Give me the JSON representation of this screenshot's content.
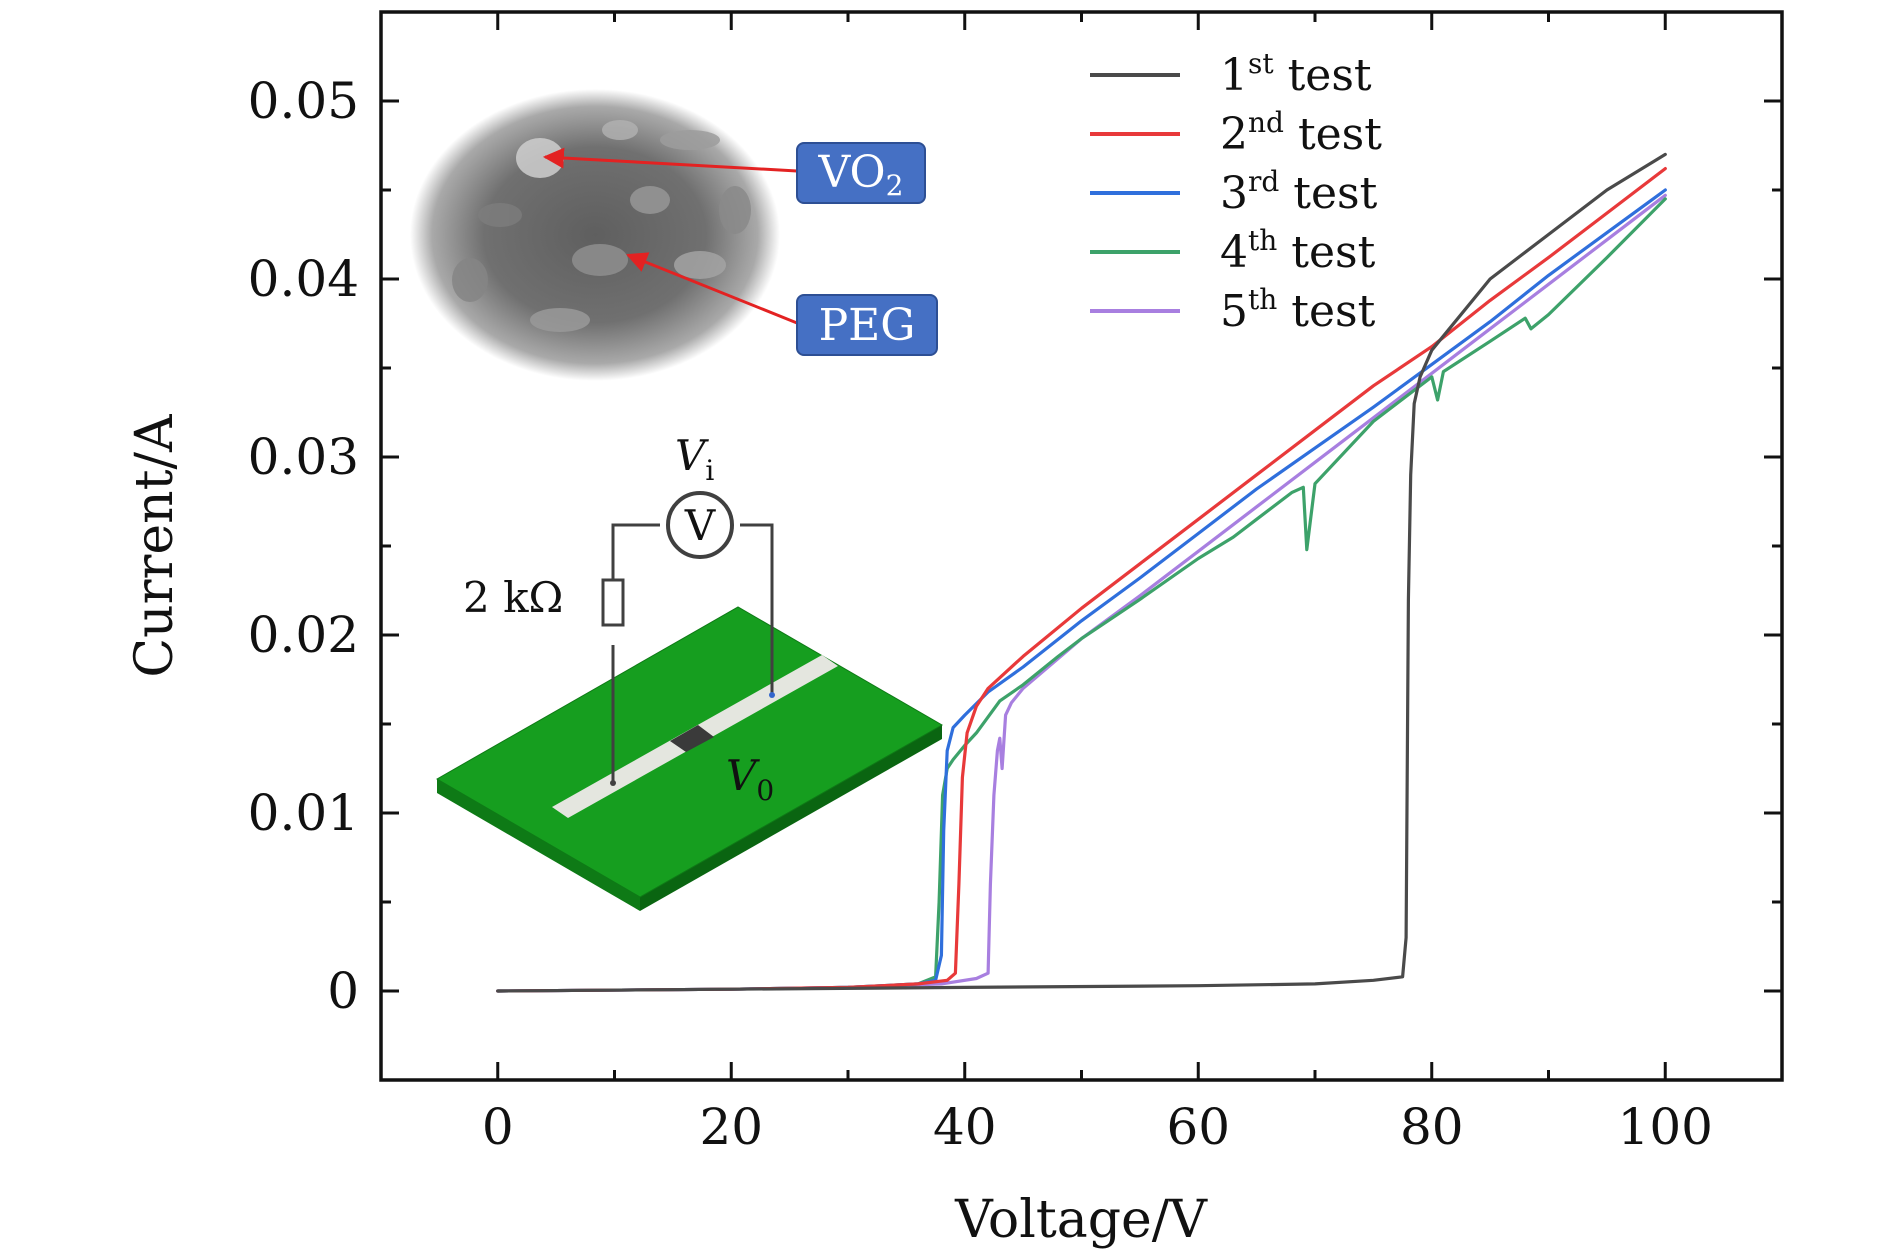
{
  "chart_data": {
    "type": "line",
    "title": "",
    "xlabel": "Voltage/V",
    "ylabel": "Current/A",
    "xlim": [
      -10,
      110
    ],
    "ylim": [
      -0.005,
      0.055
    ],
    "xticks": [
      0,
      20,
      40,
      60,
      80,
      100
    ],
    "xtick_labels": [
      "0",
      "20",
      "40",
      "60",
      "80",
      "100"
    ],
    "yticks": [
      0,
      0.01,
      0.02,
      0.03,
      0.04,
      0.05
    ],
    "ytick_labels": [
      "0",
      "0.01",
      "0.02",
      "0.03",
      "0.04",
      "0.05"
    ],
    "grid": false,
    "legend_position": "top-right",
    "series": [
      {
        "name": "1st test",
        "label_base": "1",
        "label_sup": "st",
        "label_rest": " test",
        "color": "#4a4a4a",
        "x": [
          0,
          20,
          40,
          60,
          70,
          75,
          77.5,
          77.8,
          77.9,
          78.0,
          78.2,
          78.5,
          79,
          80,
          85,
          90,
          95,
          100
        ],
        "y": [
          0,
          0.0001,
          0.0002,
          0.0003,
          0.0004,
          0.0006,
          0.0008,
          0.003,
          0.012,
          0.022,
          0.029,
          0.033,
          0.0345,
          0.036,
          0.04,
          0.0425,
          0.045,
          0.047
        ]
      },
      {
        "name": "2nd test",
        "label_base": "2",
        "label_sup": "nd",
        "label_rest": " test",
        "color": "#e8393a",
        "x": [
          0,
          20,
          30,
          36,
          38.5,
          39.2,
          39.5,
          39.8,
          40.2,
          41,
          42,
          45,
          50,
          55,
          60,
          65,
          70,
          75,
          80,
          85,
          90,
          95,
          100
        ],
        "y": [
          0,
          0.0001,
          0.0002,
          0.0004,
          0.0006,
          0.001,
          0.006,
          0.012,
          0.0145,
          0.016,
          0.017,
          0.0188,
          0.0215,
          0.024,
          0.0265,
          0.029,
          0.0315,
          0.034,
          0.0362,
          0.0388,
          0.0412,
          0.0437,
          0.0462
        ]
      },
      {
        "name": "3rd test",
        "label_base": "3",
        "label_sup": "rd",
        "label_rest": " test",
        "color": "#2f6fdc",
        "x": [
          0,
          20,
          30,
          36,
          37.5,
          38.0,
          38.2,
          38.5,
          39,
          40,
          42,
          45,
          50,
          55,
          60,
          65,
          70,
          75,
          80,
          85,
          90,
          95,
          100
        ],
        "y": [
          0,
          0.0001,
          0.0002,
          0.0004,
          0.0006,
          0.002,
          0.009,
          0.0135,
          0.0148,
          0.0155,
          0.0168,
          0.0182,
          0.0208,
          0.0232,
          0.0257,
          0.0282,
          0.0305,
          0.0328,
          0.0352,
          0.0376,
          0.0402,
          0.0426,
          0.045
        ]
      },
      {
        "name": "4th test",
        "label_base": "4",
        "label_sup": "th",
        "label_rest": " test",
        "color": "#3da26a",
        "x": [
          0,
          20,
          30,
          36,
          37.5,
          37.8,
          38.1,
          38.5,
          39,
          40,
          41,
          43,
          45,
          48,
          50,
          55,
          60,
          63,
          65,
          68,
          69,
          69.3,
          70,
          75,
          80,
          80.5,
          81,
          85,
          88,
          88.5,
          90,
          95,
          100
        ],
        "y": [
          0,
          0.0001,
          0.0002,
          0.0004,
          0.0008,
          0.005,
          0.011,
          0.0125,
          0.013,
          0.0138,
          0.0145,
          0.0163,
          0.0172,
          0.0188,
          0.0198,
          0.022,
          0.0243,
          0.0255,
          0.0265,
          0.028,
          0.0283,
          0.0248,
          0.0285,
          0.032,
          0.0345,
          0.0332,
          0.0348,
          0.0365,
          0.0378,
          0.0372,
          0.038,
          0.0412,
          0.0445
        ]
      },
      {
        "name": "5th test",
        "label_base": "5",
        "label_sup": "th",
        "label_rest": " test",
        "color": "#a87fe0",
        "x": [
          0,
          20,
          30,
          38,
          41,
          42,
          42.2,
          42.5,
          42.8,
          43,
          43.2,
          43.5,
          44,
          45,
          50,
          55,
          60,
          65,
          70,
          75,
          80,
          85,
          90,
          95,
          100
        ],
        "y": [
          0,
          0.0001,
          0.0002,
          0.0004,
          0.0007,
          0.001,
          0.006,
          0.011,
          0.0135,
          0.0142,
          0.0125,
          0.0155,
          0.0162,
          0.017,
          0.0198,
          0.0222,
          0.0247,
          0.0272,
          0.0297,
          0.0322,
          0.0347,
          0.0372,
          0.0397,
          0.0422,
          0.0447
        ]
      }
    ],
    "annotations": {
      "sem_labels": [
        {
          "base": "VO",
          "sub": "2"
        },
        {
          "base": "PEG",
          "sub": ""
        }
      ],
      "circuit": {
        "voltmeter_symbol": "V",
        "vi_base": "V",
        "vi_sub": "i",
        "v0_base": "V",
        "v0_sub": "0",
        "resistor_label": "2 kΩ"
      }
    }
  }
}
